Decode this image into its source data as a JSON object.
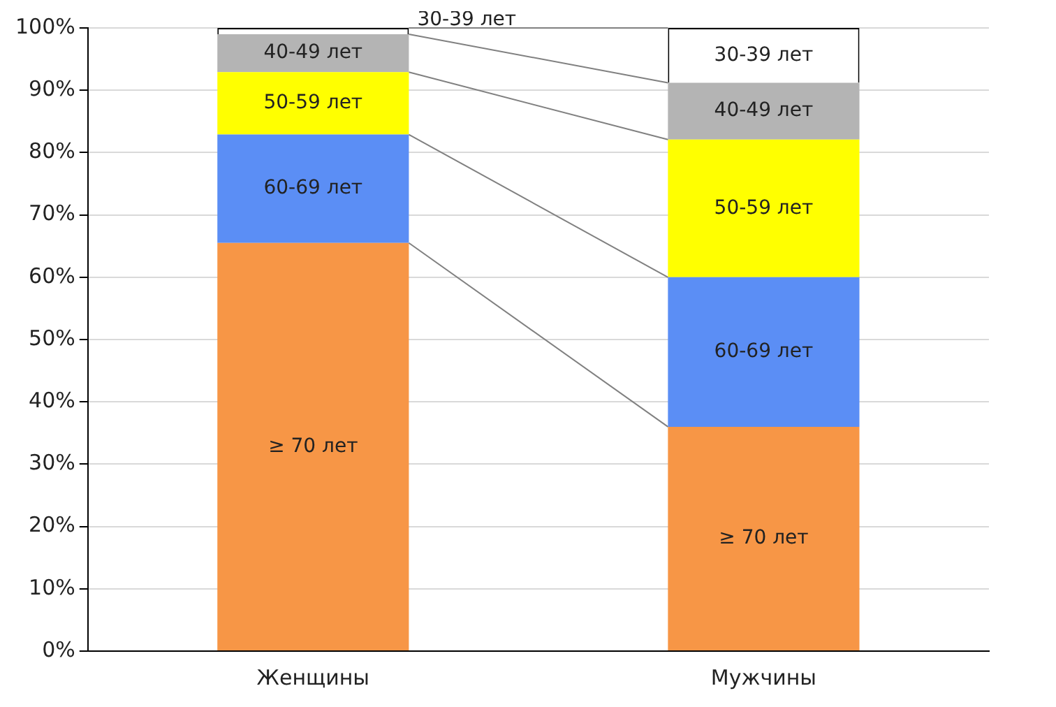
{
  "chart_data": {
    "type": "bar",
    "stacked": true,
    "categories": [
      "Женщины",
      "Мужчины"
    ],
    "series": [
      {
        "name": "≥ 70 лет",
        "color": "#f79646",
        "values": [
          65.5,
          36
        ]
      },
      {
        "name": "60-69 лет",
        "color": "#5b8ef5",
        "values": [
          17.4,
          24
        ]
      },
      {
        "name": "50-59 лет",
        "color": "#ffff00",
        "values": [
          10,
          22.1
        ]
      },
      {
        "name": "40-49 лет",
        "color": "#b4b4b4",
        "values": [
          6.1,
          9.1
        ]
      },
      {
        "name": "30-39 лет",
        "color": "#ffffff",
        "values": [
          1,
          8.8
        ]
      }
    ],
    "ylim": [
      0,
      100
    ],
    "yticks": [
      {
        "value": 0,
        "label": "0%"
      },
      {
        "value": 10,
        "label": "10%"
      },
      {
        "value": 20,
        "label": "20%"
      },
      {
        "value": 30,
        "label": "30%"
      },
      {
        "value": 40,
        "label": "40%"
      },
      {
        "value": 50,
        "label": "50%"
      },
      {
        "value": 60,
        "label": "60%"
      },
      {
        "value": 70,
        "label": "70%"
      },
      {
        "value": 80,
        "label": "80%"
      },
      {
        "value": 90,
        "label": "90%"
      },
      {
        "value": 100,
        "label": "100%"
      }
    ],
    "grid": "y",
    "legend": false
  }
}
